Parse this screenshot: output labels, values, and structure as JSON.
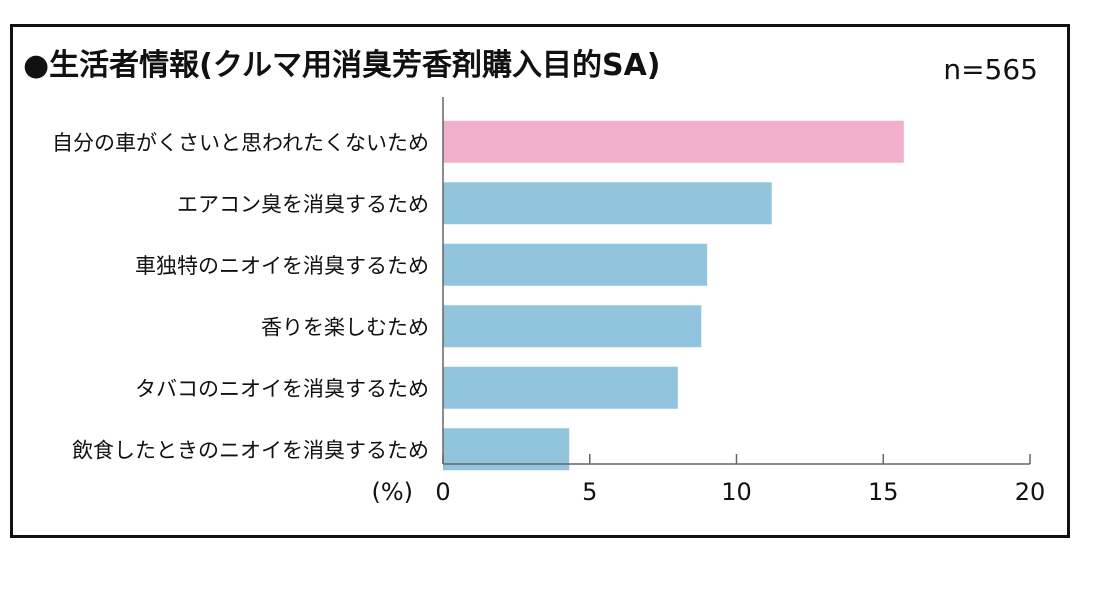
{
  "chart_data": {
    "type": "bar",
    "orientation": "horizontal",
    "title": "●生活者情報(クルマ用消臭芳香剤購入目的SA)",
    "sample_size": "n=565",
    "xlabel": "(%)",
    "ylabel": "",
    "xlim": [
      0,
      20
    ],
    "x_ticks": [
      "0",
      "5",
      "10",
      "15",
      "20"
    ],
    "grid": false,
    "legend": "none",
    "categories": [
      "自分の車がくさいと思われたくないため",
      "エアコン臭を消臭するため",
      "車独特のニオイを消臭するため",
      "香りを楽しむため",
      "タバコのニオイを消臭するため",
      "飲食したときのニオイを消臭するため"
    ],
    "values": [
      15.7,
      11.2,
      9.0,
      8.8,
      8.0,
      4.3
    ],
    "colors": [
      "#f2afcb",
      "#92c5dd",
      "#92c5dd",
      "#92c5dd",
      "#92c5dd",
      "#92c5dd"
    ],
    "axis_color": "#666666",
    "text_color": "#111111"
  }
}
